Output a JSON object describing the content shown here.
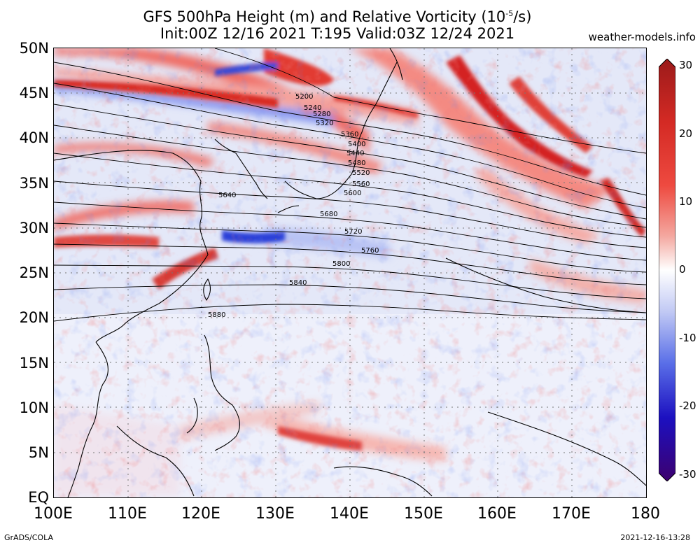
{
  "header": {
    "title_line1": "GFS 500hPa Height (m) and Relative Vorticity (10",
    "title_line1_sup": "-5",
    "title_line1_end": "/s)",
    "title_line2": "Init:00Z 12/16 2021 T:195 Valid:03Z 12/24 2021",
    "credit": "weather-models.info"
  },
  "footer": {
    "left": "GrADS/COLA",
    "right": "2021-12-16-13:28"
  },
  "axes": {
    "lat_labels": [
      "50N",
      "45N",
      "40N",
      "35N",
      "30N",
      "25N",
      "20N",
      "15N",
      "10N",
      "5N",
      "EQ"
    ],
    "lon_labels": [
      "100E",
      "110E",
      "120E",
      "130E",
      "140E",
      "150E",
      "160E",
      "170E",
      "180"
    ]
  },
  "colorbar": {
    "labels": [
      "30",
      "20",
      "10",
      "0",
      "-10",
      "-20",
      "-30"
    ],
    "colors": [
      "#3d006e",
      "#1c10b8",
      "#3a52e6",
      "#8fa6f2",
      "#d4dcfa",
      "#ffffff",
      "#f8d0cc",
      "#f08e86",
      "#e8352f",
      "#c01a18",
      "#8e1616"
    ]
  },
  "contour_labels": [
    {
      "text": "5200"
    },
    {
      "text": "5240"
    },
    {
      "text": "5280"
    },
    {
      "text": "5320"
    },
    {
      "text": "5360"
    },
    {
      "text": "5400"
    },
    {
      "text": "5440"
    },
    {
      "text": "5480"
    },
    {
      "text": "5520"
    },
    {
      "text": "5560"
    },
    {
      "text": "5600"
    },
    {
      "text": "5640"
    },
    {
      "text": "5680"
    },
    {
      "text": "5720"
    },
    {
      "text": "5760"
    },
    {
      "text": "5800"
    },
    {
      "text": "5840"
    },
    {
      "text": "5880"
    }
  ]
}
